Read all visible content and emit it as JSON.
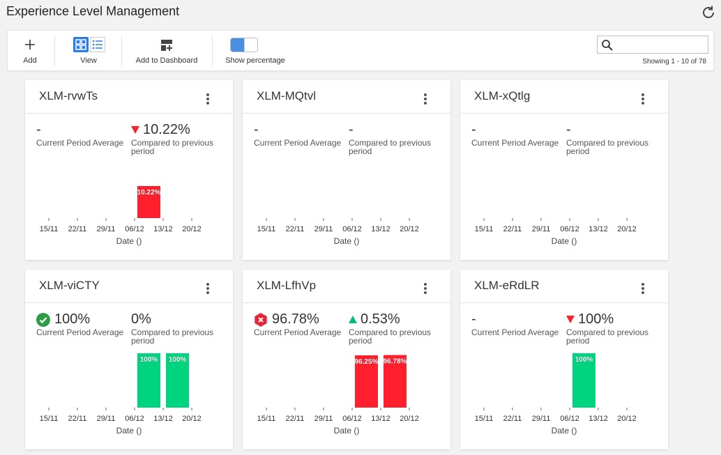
{
  "page": {
    "title": "Experience Level Management"
  },
  "toolbar": {
    "add_label": "Add",
    "view_label": "View",
    "add_dashboard_label": "Add to Dashboard",
    "show_percentage_label": "Show percentage",
    "show_percentage_on": true,
    "search_placeholder": "",
    "showing_text": "Showing 1 - 10 of 78"
  },
  "colors": {
    "red": "#ff1f2d",
    "green": "#00d47e",
    "accent": "#2b7de9"
  },
  "cards": [
    {
      "title": "XLM-rvwTs",
      "current_value": "-",
      "current_status": "",
      "current_label": "Current Period Average",
      "compare_value": "10.22%",
      "compare_trend": "down",
      "compare_label": "Compared to previous period",
      "chart_data": {
        "type": "bar",
        "categories": [
          "15/11",
          "22/11",
          "29/11",
          "06/12",
          "13/12",
          "20/12"
        ],
        "xlabel": "Date ()",
        "bars": [
          {
            "date_index": 3.5,
            "value": 10.22,
            "label": "10.22%",
            "color": "red"
          }
        ]
      }
    },
    {
      "title": "XLM-MQtvl",
      "current_value": "-",
      "current_status": "",
      "current_label": "Current Period Average",
      "compare_value": "-",
      "compare_trend": "",
      "compare_label": "Compared to previous period",
      "chart_data": {
        "type": "bar",
        "categories": [
          "15/11",
          "22/11",
          "29/11",
          "06/12",
          "13/12",
          "20/12"
        ],
        "xlabel": "Date ()",
        "bars": []
      }
    },
    {
      "title": "XLM-xQtlg",
      "current_value": "-",
      "current_status": "",
      "current_label": "Current Period Average",
      "compare_value": "-",
      "compare_trend": "",
      "compare_label": "Compared to previous period",
      "chart_data": {
        "type": "bar",
        "categories": [
          "15/11",
          "22/11",
          "29/11",
          "06/12",
          "13/12",
          "20/12"
        ],
        "xlabel": "Date ()",
        "bars": []
      }
    },
    {
      "title": "XLM-viCTY",
      "current_value": "100%",
      "current_status": "ok",
      "current_label": "Current Period Average",
      "compare_value": "0%",
      "compare_trend": "",
      "compare_label": "Compared to previous period",
      "chart_data": {
        "type": "bar",
        "categories": [
          "15/11",
          "22/11",
          "29/11",
          "06/12",
          "13/12",
          "20/12"
        ],
        "xlabel": "Date ()",
        "bars": [
          {
            "date_index": 3.5,
            "value": 100,
            "label": "100%",
            "color": "green"
          },
          {
            "date_index": 4.5,
            "value": 100,
            "label": "100%",
            "color": "green"
          }
        ]
      }
    },
    {
      "title": "XLM-LfhVp",
      "current_value": "96.78%",
      "current_status": "error",
      "current_label": "Current Period Average",
      "compare_value": "0.53%",
      "compare_trend": "up",
      "compare_label": "Compared to previous period",
      "chart_data": {
        "type": "bar",
        "categories": [
          "15/11",
          "22/11",
          "29/11",
          "06/12",
          "13/12",
          "20/12"
        ],
        "xlabel": "Date ()",
        "bars": [
          {
            "date_index": 3.5,
            "value": 96.25,
            "label": "96.25%",
            "color": "red"
          },
          {
            "date_index": 4.5,
            "value": 96.78,
            "label": "96.78%",
            "color": "red"
          }
        ]
      }
    },
    {
      "title": "XLM-eRdLR",
      "current_value": "-",
      "current_status": "",
      "current_label": "Current Period Average",
      "compare_value": "100%",
      "compare_trend": "down",
      "compare_label": "Compared to previous period",
      "chart_data": {
        "type": "bar",
        "categories": [
          "15/11",
          "22/11",
          "29/11",
          "06/12",
          "13/12",
          "20/12"
        ],
        "xlabel": "Date ()",
        "bars": [
          {
            "date_index": 3.5,
            "value": 100,
            "label": "100%",
            "color": "green"
          }
        ]
      }
    }
  ]
}
